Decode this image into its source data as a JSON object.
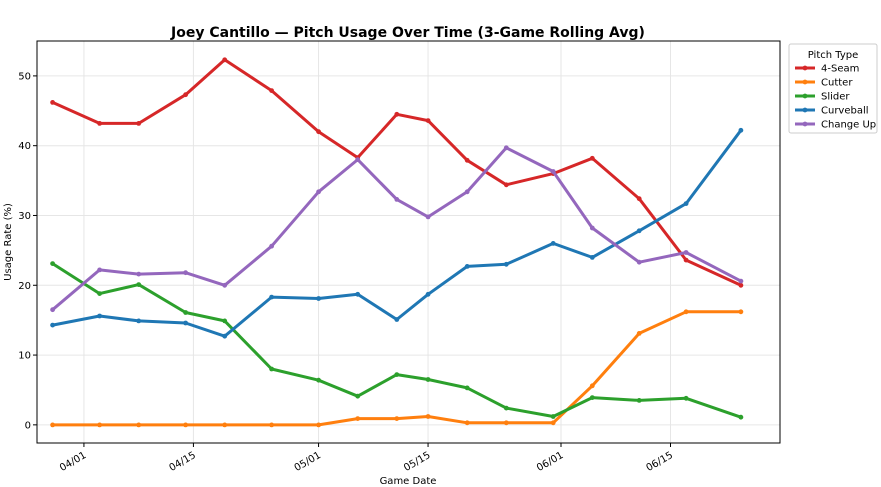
{
  "chart_data": {
    "type": "line",
    "title": "Joey Cantillo — Pitch Usage Over Time (3-Game Rolling Avg)",
    "xlabel": "Game Date",
    "ylabel": "Usage Rate (%)",
    "ylim": [
      -2.6,
      55
    ],
    "yticks": [
      0,
      10,
      20,
      30,
      40,
      50
    ],
    "xlim": [
      "2025-03-26",
      "2025-06-29"
    ],
    "xticks": [
      {
        "date": "2025-04-01",
        "label": "04/01"
      },
      {
        "date": "2025-04-15",
        "label": "04/15"
      },
      {
        "date": "2025-05-01",
        "label": "05/01"
      },
      {
        "date": "2025-05-15",
        "label": "05/15"
      },
      {
        "date": "2025-06-01",
        "label": "06/01"
      },
      {
        "date": "2025-06-15",
        "label": "06/15"
      }
    ],
    "grid": true,
    "legend_position": "outside-top-right",
    "legend_title": "Pitch Type",
    "x": [
      "2025-03-28",
      "2025-04-03",
      "2025-04-08",
      "2025-04-14",
      "2025-04-19",
      "2025-04-25",
      "2025-05-01",
      "2025-05-06",
      "2025-05-11",
      "2025-05-15",
      "2025-05-20",
      "2025-05-25",
      "2025-05-31",
      "2025-06-05",
      "2025-06-11",
      "2025-06-17",
      "2025-06-24"
    ],
    "series": [
      {
        "name": "4-Seam",
        "color": "#d62728",
        "values": [
          46.2,
          43.2,
          43.2,
          47.3,
          52.3,
          47.9,
          42.0,
          38.3,
          44.5,
          43.6,
          37.9,
          34.4,
          36.0,
          38.2,
          32.4,
          23.6,
          20.0
        ]
      },
      {
        "name": "Cutter",
        "color": "#ff7f0e",
        "values": [
          0.0,
          0.0,
          0.0,
          0.0,
          0.0,
          0.0,
          0.0,
          0.9,
          0.9,
          1.2,
          0.3,
          0.3,
          0.3,
          5.6,
          13.1,
          16.2,
          16.2
        ]
      },
      {
        "name": "Slider",
        "color": "#2ca02c",
        "values": [
          23.1,
          18.8,
          20.1,
          16.1,
          14.9,
          8.0,
          6.4,
          4.1,
          7.2,
          6.5,
          5.3,
          2.4,
          1.2,
          3.9,
          3.5,
          3.8,
          1.1
        ]
      },
      {
        "name": "Curveball",
        "color": "#1f77b4",
        "values": [
          14.3,
          15.6,
          14.9,
          14.6,
          12.7,
          18.3,
          18.1,
          18.7,
          15.1,
          18.7,
          22.7,
          23.0,
          26.0,
          24.0,
          27.8,
          31.7,
          42.2
        ]
      },
      {
        "name": "Change Up",
        "color": "#9467bd",
        "values": [
          16.5,
          22.2,
          21.6,
          21.8,
          20.0,
          25.6,
          33.4,
          38.0,
          32.3,
          29.8,
          33.4,
          39.7,
          36.3,
          28.2,
          23.3,
          24.7,
          20.6
        ]
      }
    ]
  }
}
